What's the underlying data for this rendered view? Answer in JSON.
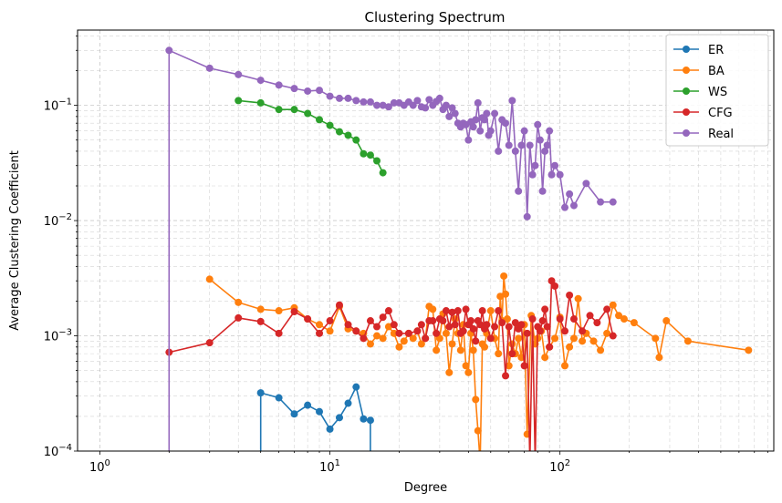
{
  "chart_data": {
    "type": "line",
    "title": "Clustering Spectrum",
    "xlabel": "Degree",
    "ylabel": "Average Clustering Coefficient",
    "xscale": "log",
    "yscale": "log",
    "xlim": [
      0.8,
      850
    ],
    "ylim": [
      0.0001,
      0.45
    ],
    "grid": true,
    "legend_position": "top-right",
    "x_ticks": [
      {
        "value": 1,
        "base": "10",
        "exp": "0"
      },
      {
        "value": 10,
        "base": "10",
        "exp": "1"
      },
      {
        "value": 100,
        "base": "10",
        "exp": "2"
      }
    ],
    "y_ticks": [
      {
        "value": 0.0001,
        "base": "10",
        "exp": "−4"
      },
      {
        "value": 0.001,
        "base": "10",
        "exp": "−3"
      },
      {
        "value": 0.01,
        "base": "10",
        "exp": "−2"
      },
      {
        "value": 0.1,
        "base": "10",
        "exp": "−1"
      }
    ],
    "series": [
      {
        "name": "ER",
        "color": "#1f77b4",
        "x": [
          5,
          5,
          6,
          7,
          8,
          9,
          10,
          11,
          12,
          13,
          14,
          15,
          15
        ],
        "y": [
          8e-05,
          0.00032,
          0.00029,
          0.00021,
          0.00025,
          0.00022,
          0.000155,
          0.000195,
          0.00026,
          0.00036,
          0.00019,
          0.000185,
          8e-05
        ]
      },
      {
        "name": "BA",
        "color": "#ff7f0e",
        "x": [
          3,
          4,
          5,
          6,
          7,
          8,
          9,
          10,
          11,
          12,
          13,
          14,
          15,
          16,
          17,
          18,
          19,
          20,
          21,
          22,
          23,
          24,
          25,
          26,
          27,
          28,
          29,
          30,
          31,
          32,
          33,
          34,
          35,
          36,
          37,
          38,
          39,
          40,
          41,
          42,
          43,
          44,
          45,
          46,
          47,
          48,
          50,
          52,
          54,
          55,
          56,
          57,
          58,
          59,
          60,
          62,
          64,
          66,
          68,
          70,
          72,
          75,
          78,
          80,
          83,
          86,
          90,
          95,
          100,
          105,
          110,
          115,
          120,
          125,
          130,
          140,
          150,
          160,
          170,
          180,
          190,
          210,
          260,
          270,
          290,
          360,
          660
        ],
        "y": [
          0.0031,
          0.00195,
          0.0017,
          0.00165,
          0.00175,
          0.0014,
          0.00125,
          0.0011,
          0.0018,
          0.00115,
          0.0011,
          0.00105,
          0.00085,
          0.001,
          0.00095,
          0.0012,
          0.00105,
          0.0008,
          0.0009,
          0.00105,
          0.00095,
          0.0011,
          0.00085,
          0.00095,
          0.0018,
          0.0017,
          0.00075,
          0.00095,
          0.00155,
          0.00105,
          0.00048,
          0.00085,
          0.0014,
          0.00105,
          0.00075,
          0.00125,
          0.00055,
          0.00048,
          0.00105,
          0.00075,
          0.00028,
          0.00015,
          8e-05,
          0.00085,
          0.0008,
          0.00105,
          0.00165,
          0.00095,
          0.0007,
          0.0022,
          0.00135,
          0.0033,
          0.0023,
          0.0014,
          0.00055,
          0.00085,
          0.0007,
          0.00095,
          0.00065,
          0.00125,
          0.00014,
          0.0015,
          0.00085,
          0.00095,
          0.0011,
          0.00065,
          0.0008,
          0.00095,
          0.00145,
          0.00055,
          0.0008,
          0.00095,
          0.0021,
          0.0009,
          0.00105,
          0.0009,
          0.00075,
          0.00105,
          0.00185,
          0.0015,
          0.0014,
          0.0013,
          0.00095,
          0.00065,
          0.00135,
          0.0009,
          0.00075
        ]
      },
      {
        "name": "WS",
        "color": "#2ca02c",
        "x": [
          4,
          5,
          6,
          7,
          8,
          9,
          10,
          11,
          12,
          13,
          14,
          15,
          16,
          17
        ],
        "y": [
          0.11,
          0.105,
          0.092,
          0.092,
          0.085,
          0.075,
          0.067,
          0.059,
          0.055,
          0.05,
          0.038,
          0.037,
          0.033,
          0.026
        ]
      },
      {
        "name": "CFG",
        "color": "#d62728",
        "x": [
          2,
          3,
          4,
          5,
          6,
          7,
          8,
          9,
          10,
          11,
          12,
          13,
          14,
          15,
          16,
          17,
          18,
          19,
          20,
          22,
          24,
          25,
          26,
          27,
          28,
          29,
          30,
          31,
          32,
          33,
          34,
          35,
          36,
          37,
          38,
          39,
          40,
          41,
          42,
          43,
          44,
          45,
          46,
          47,
          48,
          50,
          52,
          54,
          56,
          58,
          60,
          62,
          64,
          66,
          68,
          70,
          72,
          74,
          76,
          78,
          80,
          82,
          84,
          86,
          88,
          90,
          92,
          95,
          100,
          105,
          110,
          115,
          125,
          135,
          145,
          160,
          170
        ],
        "y": [
          0.00072,
          0.00087,
          0.00143,
          0.00133,
          0.00105,
          0.00162,
          0.0014,
          0.00105,
          0.00135,
          0.00185,
          0.00125,
          0.0011,
          0.00095,
          0.00135,
          0.0012,
          0.00145,
          0.00165,
          0.00125,
          0.00105,
          0.00105,
          0.0011,
          0.00125,
          0.00095,
          0.00135,
          0.00135,
          0.00105,
          0.0014,
          0.00135,
          0.00165,
          0.0012,
          0.0016,
          0.00125,
          0.00165,
          0.00105,
          0.0011,
          0.0017,
          0.00125,
          0.00135,
          0.00115,
          0.0009,
          0.00135,
          0.00125,
          0.00165,
          0.00115,
          0.00125,
          0.00095,
          0.0012,
          0.00165,
          0.0013,
          0.00045,
          0.0012,
          0.0007,
          0.0013,
          0.00115,
          0.00125,
          0.00055,
          0.00105,
          8e-05,
          0.0014,
          8e-05,
          0.0012,
          0.0011,
          0.00135,
          0.0017,
          0.0012,
          0.0008,
          0.003,
          0.0027,
          0.0014,
          0.0011,
          0.00225,
          0.0014,
          0.0011,
          0.0015,
          0.0013,
          0.0017,
          0.001
        ]
      },
      {
        "name": "Real",
        "color": "#9467bd",
        "x": [
          2,
          2,
          3,
          4,
          5,
          6,
          7,
          8,
          9,
          10,
          11,
          12,
          13,
          14,
          15,
          16,
          17,
          18,
          19,
          20,
          21,
          22,
          23,
          24,
          25,
          26,
          27,
          28,
          29,
          30,
          31,
          32,
          33,
          34,
          35,
          36,
          37,
          38,
          39,
          40,
          41,
          42,
          43,
          44,
          45,
          46,
          47,
          48,
          49,
          50,
          52,
          54,
          56,
          58,
          60,
          62,
          64,
          66,
          68,
          70,
          72,
          74,
          76,
          78,
          80,
          82,
          84,
          86,
          88,
          90,
          92,
          95,
          100,
          105,
          110,
          115,
          130,
          150,
          170
        ],
        "y": [
          8e-05,
          0.3,
          0.21,
          0.185,
          0.165,
          0.15,
          0.14,
          0.133,
          0.135,
          0.12,
          0.115,
          0.115,
          0.11,
          0.107,
          0.107,
          0.1,
          0.1,
          0.097,
          0.105,
          0.105,
          0.1,
          0.107,
          0.1,
          0.11,
          0.097,
          0.095,
          0.112,
          0.1,
          0.108,
          0.115,
          0.092,
          0.1,
          0.08,
          0.095,
          0.085,
          0.07,
          0.065,
          0.07,
          0.068,
          0.05,
          0.072,
          0.065,
          0.075,
          0.105,
          0.06,
          0.078,
          0.075,
          0.085,
          0.055,
          0.06,
          0.085,
          0.04,
          0.075,
          0.07,
          0.045,
          0.11,
          0.04,
          0.018,
          0.045,
          0.06,
          0.0108,
          0.045,
          0.025,
          0.03,
          0.068,
          0.05,
          0.018,
          0.04,
          0.045,
          0.06,
          0.025,
          0.03,
          0.025,
          0.013,
          0.017,
          0.0135,
          0.021,
          0.0145,
          0.0145
        ]
      }
    ]
  }
}
